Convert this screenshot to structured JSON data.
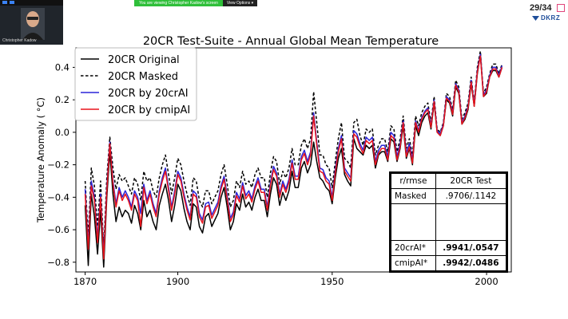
{
  "meeting": {
    "presenter_name": "Christopher Kadow",
    "share_notice": "You are viewing Christopher Kadow's screen",
    "view_options": "View Options"
  },
  "slide": {
    "number": "29/34",
    "logo_text": "DKRZ"
  },
  "chart_data": {
    "type": "line",
    "title": "20CR Test-Suite - Annual Global Mean Temperature",
    "xlabel": "",
    "ylabel": "Temperature Anomaly ( °C)",
    "xlim": [
      1867,
      2008
    ],
    "ylim": [
      -0.86,
      0.52
    ],
    "x_ticks": [
      1870,
      1900,
      1950,
      2000
    ],
    "y_ticks": [
      -0.8,
      -0.6,
      -0.4,
      -0.2,
      0.0,
      0.2,
      0.4
    ],
    "y_tick_labels": [
      "−0.8",
      "−0.6",
      "−0.4",
      "−0.2",
      "0.0",
      "0.2",
      "0.4"
    ],
    "grid": false,
    "legend_position": "top-left",
    "x": [
      1870,
      1871,
      1872,
      1873,
      1874,
      1875,
      1876,
      1877,
      1878,
      1879,
      1880,
      1881,
      1882,
      1883,
      1884,
      1885,
      1886,
      1887,
      1888,
      1889,
      1890,
      1891,
      1892,
      1893,
      1894,
      1895,
      1896,
      1897,
      1898,
      1899,
      1900,
      1901,
      1902,
      1903,
      1904,
      1905,
      1906,
      1907,
      1908,
      1909,
      1910,
      1911,
      1912,
      1913,
      1914,
      1915,
      1916,
      1917,
      1918,
      1919,
      1920,
      1921,
      1922,
      1923,
      1924,
      1925,
      1926,
      1927,
      1928,
      1929,
      1930,
      1931,
      1932,
      1933,
      1934,
      1935,
      1936,
      1937,
      1938,
      1939,
      1940,
      1941,
      1942,
      1943,
      1944,
      1945,
      1946,
      1947,
      1948,
      1949,
      1950,
      1951,
      1952,
      1953,
      1954,
      1955,
      1956,
      1957,
      1958,
      1959,
      1960,
      1961,
      1962,
      1963,
      1964,
      1965,
      1966,
      1967,
      1968,
      1969,
      1970,
      1971,
      1972,
      1973,
      1974,
      1975,
      1976,
      1977,
      1978,
      1979,
      1980,
      1981,
      1982,
      1983,
      1984,
      1985,
      1986,
      1987,
      1988,
      1989,
      1990,
      1991,
      1992,
      1993,
      1994,
      1995,
      1996,
      1997,
      1998,
      1999,
      2000,
      2001,
      2002,
      2003,
      2004,
      2005
    ],
    "series": [
      {
        "name": "20CR Original",
        "style": "solid",
        "color": "#000000",
        "values": [
          -0.45,
          -0.82,
          -0.38,
          -0.52,
          -0.75,
          -0.48,
          -0.83,
          -0.4,
          -0.12,
          -0.38,
          -0.55,
          -0.46,
          -0.52,
          -0.48,
          -0.5,
          -0.56,
          -0.45,
          -0.5,
          -0.6,
          -0.42,
          -0.52,
          -0.48,
          -0.55,
          -0.6,
          -0.45,
          -0.38,
          -0.32,
          -0.42,
          -0.55,
          -0.45,
          -0.32,
          -0.36,
          -0.47,
          -0.55,
          -0.6,
          -0.44,
          -0.46,
          -0.58,
          -0.62,
          -0.52,
          -0.5,
          -0.58,
          -0.54,
          -0.5,
          -0.4,
          -0.34,
          -0.46,
          -0.6,
          -0.55,
          -0.44,
          -0.48,
          -0.38,
          -0.46,
          -0.43,
          -0.48,
          -0.4,
          -0.35,
          -0.42,
          -0.42,
          -0.52,
          -0.38,
          -0.28,
          -0.32,
          -0.45,
          -0.37,
          -0.42,
          -0.36,
          -0.24,
          -0.34,
          -0.34,
          -0.22,
          -0.18,
          -0.25,
          -0.2,
          -0.06,
          -0.18,
          -0.28,
          -0.3,
          -0.34,
          -0.36,
          -0.44,
          -0.28,
          -0.16,
          -0.1,
          -0.26,
          -0.3,
          -0.33,
          -0.04,
          -0.1,
          -0.12,
          -0.14,
          -0.08,
          -0.1,
          -0.08,
          -0.22,
          -0.14,
          -0.12,
          -0.12,
          -0.18,
          -0.04,
          -0.06,
          -0.18,
          -0.1,
          0.04,
          -0.16,
          -0.1,
          -0.2,
          0.04,
          -0.02,
          0.06,
          0.1,
          0.12,
          0.02,
          0.18,
          0.0,
          -0.02,
          0.04,
          0.2,
          0.18,
          0.1,
          0.28,
          0.24,
          0.05,
          0.08,
          0.14,
          0.3,
          0.16,
          0.36,
          0.48,
          0.22,
          0.24,
          0.34,
          0.38,
          0.38,
          0.34,
          0.4
        ]
      },
      {
        "name": "20CR Masked",
        "style": "dashed",
        "color": "#000000",
        "values": [
          -0.3,
          -0.65,
          -0.22,
          -0.33,
          -0.58,
          -0.3,
          -0.72,
          -0.28,
          -0.03,
          -0.22,
          -0.35,
          -0.26,
          -0.3,
          -0.28,
          -0.33,
          -0.38,
          -0.28,
          -0.32,
          -0.42,
          -0.24,
          -0.3,
          -0.28,
          -0.36,
          -0.4,
          -0.28,
          -0.2,
          -0.14,
          -0.26,
          -0.38,
          -0.28,
          -0.16,
          -0.2,
          -0.3,
          -0.38,
          -0.45,
          -0.28,
          -0.3,
          -0.42,
          -0.46,
          -0.36,
          -0.36,
          -0.44,
          -0.4,
          -0.36,
          -0.26,
          -0.2,
          -0.32,
          -0.46,
          -0.42,
          -0.3,
          -0.34,
          -0.24,
          -0.32,
          -0.3,
          -0.34,
          -0.26,
          -0.22,
          -0.28,
          -0.28,
          -0.4,
          -0.25,
          -0.15,
          -0.18,
          -0.32,
          -0.24,
          -0.28,
          -0.22,
          -0.1,
          -0.2,
          -0.2,
          -0.08,
          -0.04,
          -0.1,
          -0.04,
          0.25,
          0.06,
          -0.14,
          -0.14,
          -0.2,
          -0.22,
          -0.34,
          -0.18,
          -0.04,
          0.06,
          -0.16,
          -0.18,
          -0.22,
          0.06,
          0.08,
          -0.02,
          -0.08,
          0.02,
          0.0,
          0.02,
          -0.14,
          -0.08,
          -0.04,
          -0.04,
          -0.12,
          0.04,
          0.02,
          -0.12,
          -0.04,
          0.1,
          -0.1,
          -0.04,
          -0.14,
          0.1,
          0.04,
          0.12,
          0.16,
          0.18,
          0.06,
          0.22,
          0.02,
          0.0,
          0.06,
          0.24,
          0.22,
          0.14,
          0.32,
          0.28,
          0.08,
          0.12,
          0.18,
          0.34,
          0.18,
          0.4,
          0.5,
          0.24,
          0.28,
          0.36,
          0.42,
          0.42,
          0.36,
          0.42
        ]
      },
      {
        "name": "20CR by 20crAI",
        "style": "solid",
        "color": "#2a24d8",
        "values": [
          -0.35,
          -0.7,
          -0.3,
          -0.4,
          -0.65,
          -0.38,
          -0.76,
          -0.34,
          -0.06,
          -0.3,
          -0.44,
          -0.34,
          -0.4,
          -0.36,
          -0.4,
          -0.46,
          -0.36,
          -0.4,
          -0.5,
          -0.32,
          -0.42,
          -0.36,
          -0.44,
          -0.5,
          -0.36,
          -0.28,
          -0.22,
          -0.34,
          -0.46,
          -0.36,
          -0.24,
          -0.28,
          -0.38,
          -0.46,
          -0.52,
          -0.36,
          -0.38,
          -0.5,
          -0.54,
          -0.44,
          -0.43,
          -0.51,
          -0.47,
          -0.43,
          -0.33,
          -0.27,
          -0.39,
          -0.53,
          -0.49,
          -0.37,
          -0.41,
          -0.31,
          -0.39,
          -0.36,
          -0.41,
          -0.33,
          -0.28,
          -0.35,
          -0.35,
          -0.46,
          -0.31,
          -0.21,
          -0.25,
          -0.38,
          -0.3,
          -0.35,
          -0.29,
          -0.17,
          -0.27,
          -0.27,
          -0.15,
          -0.11,
          -0.18,
          -0.12,
          0.12,
          -0.06,
          -0.22,
          -0.23,
          -0.28,
          -0.3,
          -0.4,
          -0.23,
          -0.1,
          -0.02,
          -0.22,
          -0.25,
          -0.28,
          0.01,
          -0.01,
          -0.07,
          -0.11,
          -0.03,
          -0.05,
          -0.03,
          -0.18,
          -0.11,
          -0.08,
          -0.08,
          -0.15,
          0.0,
          -0.02,
          -0.15,
          -0.07,
          0.07,
          -0.13,
          -0.07,
          -0.17,
          0.07,
          0.01,
          0.09,
          0.13,
          0.15,
          0.04,
          0.2,
          0.01,
          -0.01,
          0.05,
          0.22,
          0.2,
          0.12,
          0.3,
          0.26,
          0.06,
          0.1,
          0.16,
          0.32,
          0.17,
          0.38,
          0.48,
          0.23,
          0.26,
          0.35,
          0.4,
          0.4,
          0.35,
          0.41
        ]
      },
      {
        "name": "20CR by cmipAI",
        "style": "solid",
        "color": "#e8141b",
        "values": [
          -0.38,
          -0.72,
          -0.33,
          -0.42,
          -0.68,
          -0.4,
          -0.78,
          -0.36,
          -0.07,
          -0.32,
          -0.46,
          -0.36,
          -0.42,
          -0.38,
          -0.42,
          -0.48,
          -0.38,
          -0.42,
          -0.58,
          -0.34,
          -0.44,
          -0.38,
          -0.46,
          -0.52,
          -0.38,
          -0.3,
          -0.24,
          -0.36,
          -0.48,
          -0.38,
          -0.26,
          -0.3,
          -0.4,
          -0.48,
          -0.54,
          -0.38,
          -0.4,
          -0.52,
          -0.56,
          -0.46,
          -0.45,
          -0.53,
          -0.49,
          -0.45,
          -0.35,
          -0.29,
          -0.41,
          -0.55,
          -0.51,
          -0.39,
          -0.43,
          -0.33,
          -0.41,
          -0.38,
          -0.43,
          -0.35,
          -0.3,
          -0.37,
          -0.37,
          -0.48,
          -0.33,
          -0.23,
          -0.27,
          -0.4,
          -0.32,
          -0.37,
          -0.31,
          -0.19,
          -0.29,
          -0.29,
          -0.17,
          -0.13,
          -0.2,
          -0.14,
          0.1,
          -0.08,
          -0.24,
          -0.25,
          -0.3,
          -0.32,
          -0.42,
          -0.25,
          -0.12,
          -0.04,
          -0.24,
          -0.27,
          -0.3,
          -0.01,
          -0.03,
          -0.09,
          -0.13,
          -0.05,
          -0.07,
          -0.05,
          -0.2,
          -0.13,
          -0.1,
          -0.1,
          -0.17,
          -0.02,
          -0.04,
          -0.17,
          -0.09,
          0.06,
          -0.15,
          -0.09,
          -0.19,
          0.06,
          0.0,
          0.08,
          0.12,
          0.14,
          0.03,
          0.19,
          0.0,
          -0.02,
          0.04,
          0.21,
          0.19,
          0.11,
          0.29,
          0.25,
          0.05,
          0.09,
          0.15,
          0.31,
          0.16,
          0.37,
          0.47,
          0.22,
          0.25,
          0.34,
          0.39,
          0.39,
          0.34,
          0.4
        ]
      }
    ],
    "table": {
      "headers": [
        "r/rmse",
        "20CR Test"
      ],
      "rows": [
        {
          "label": "Masked",
          "value": ".9706/.1142",
          "bold": false
        },
        {
          "label": "",
          "value": "",
          "bold": false
        },
        {
          "label": "20crAI*",
          "value": ".9941/.0547",
          "bold": true
        },
        {
          "label": "cmipAI*",
          "value": ".9942/.0486",
          "bold": true
        }
      ]
    }
  }
}
